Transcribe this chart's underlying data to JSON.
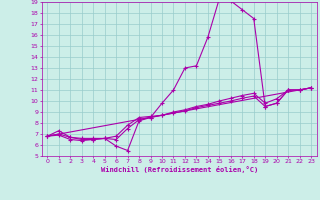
{
  "xlabel": "Windchill (Refroidissement éolien,°C)",
  "xlim": [
    -0.5,
    23.5
  ],
  "ylim": [
    5,
    19
  ],
  "xticks": [
    0,
    1,
    2,
    3,
    4,
    5,
    6,
    7,
    8,
    9,
    10,
    11,
    12,
    13,
    14,
    15,
    16,
    17,
    18,
    19,
    20,
    21,
    22,
    23
  ],
  "yticks": [
    5,
    6,
    7,
    8,
    9,
    10,
    11,
    12,
    13,
    14,
    15,
    16,
    17,
    18,
    19
  ],
  "bg_color": "#cceee8",
  "line_color": "#aa00aa",
  "grid_color": "#99cccc",
  "line1_x": [
    0,
    1,
    2,
    3,
    4,
    5,
    6,
    7,
    8,
    9,
    10,
    11,
    12,
    13,
    14,
    15,
    16,
    17,
    18,
    19,
    20,
    21,
    22,
    23
  ],
  "line1_y": [
    6.8,
    7.3,
    6.7,
    6.6,
    6.6,
    6.6,
    5.9,
    5.5,
    8.2,
    8.5,
    9.8,
    11.0,
    13.0,
    13.2,
    15.8,
    19.3,
    19.1,
    18.3,
    17.5,
    9.5,
    9.8,
    11.0,
    11.0,
    11.2
  ],
  "line2_x": [
    0,
    1,
    2,
    3,
    4,
    5,
    6,
    7,
    8,
    9,
    10,
    11,
    12,
    13,
    14,
    15,
    16,
    17,
    18,
    19,
    20,
    21,
    22,
    23
  ],
  "line2_y": [
    6.8,
    7.0,
    6.7,
    6.5,
    6.5,
    6.6,
    6.5,
    7.5,
    8.3,
    8.5,
    8.7,
    8.9,
    9.1,
    9.4,
    9.6,
    9.8,
    10.0,
    10.25,
    10.45,
    9.5,
    9.8,
    11.0,
    11.0,
    11.2
  ],
  "line3_x": [
    0,
    1,
    2,
    3,
    4,
    5,
    6,
    7,
    8,
    9,
    10,
    11,
    12,
    13,
    14,
    15,
    16,
    17,
    18,
    19,
    20,
    21,
    22,
    23
  ],
  "line3_y": [
    6.8,
    6.9,
    6.5,
    6.4,
    6.5,
    6.6,
    6.8,
    7.8,
    8.5,
    8.6,
    8.7,
    9.0,
    9.2,
    9.5,
    9.7,
    10.0,
    10.25,
    10.5,
    10.7,
    9.8,
    10.2,
    11.0,
    11.0,
    11.2
  ],
  "line4_x": [
    0,
    23
  ],
  "line4_y": [
    6.8,
    11.2
  ]
}
